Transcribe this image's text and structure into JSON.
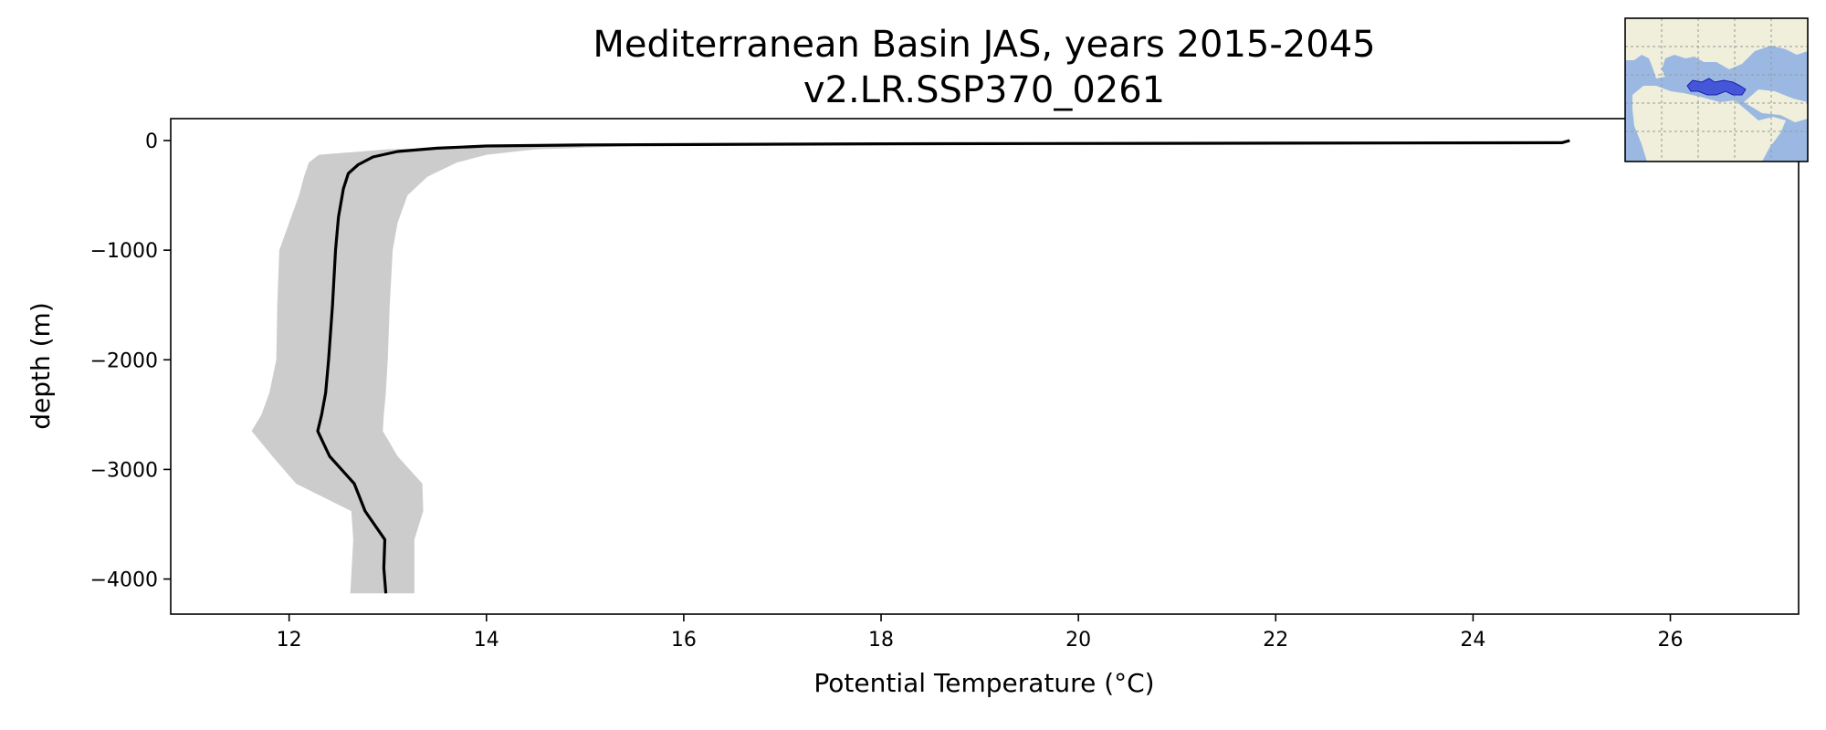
{
  "chart_data": {
    "type": "line",
    "title": "Mediterranean Basin JAS, years 2015-2045",
    "subtitle": "v2.LR.SSP370_0261",
    "xlabel": "Potential Temperature (°C)",
    "ylabel": "depth (m)",
    "xlim": [
      10.8,
      27.3
    ],
    "ylim": [
      -4320,
      200
    ],
    "x_ticks": [
      12,
      14,
      16,
      18,
      20,
      22,
      24,
      26
    ],
    "x_tick_labels": [
      "12",
      "14",
      "16",
      "18",
      "20",
      "22",
      "24",
      "26"
    ],
    "y_ticks": [
      0,
      -1000,
      -2000,
      -3000,
      -4000
    ],
    "y_tick_labels": [
      "0",
      "−1000",
      "−2000",
      "−3000",
      "−4000"
    ],
    "grid": false,
    "legend": "none",
    "series": [
      {
        "role": "mean",
        "color": "#000000",
        "x": [
          24.98,
          24.9,
          18.0,
          15.0,
          14.0,
          13.5,
          13.1,
          12.85,
          12.7,
          12.6,
          12.55,
          12.5,
          12.47,
          12.44,
          12.4,
          12.37,
          12.33,
          12.29,
          12.41,
          12.66,
          12.77,
          12.97,
          12.96,
          12.98
        ],
        "y": [
          0,
          -20,
          -30,
          -40,
          -50,
          -70,
          -100,
          -150,
          -220,
          -300,
          -440,
          -700,
          -1000,
          -1500,
          -2000,
          -2300,
          -2500,
          -2650,
          -2880,
          -3130,
          -3380,
          -3640,
          -3900,
          -4130
        ]
      },
      {
        "role": "range",
        "color": "#cccccc",
        "x_min": [
          25.5,
          18.0,
          15.0,
          13.0,
          12.3,
          12.2,
          12.15,
          12.1,
          12.0,
          11.9,
          11.88,
          11.87,
          11.8,
          11.72,
          11.62,
          11.83,
          12.07,
          12.63,
          12.65,
          12.62
        ],
        "x_max": [
          25.5,
          18.0,
          15.5,
          14.5,
          14.0,
          13.7,
          13.4,
          13.2,
          13.1,
          13.05,
          13.02,
          13.0,
          12.98,
          12.96,
          12.95,
          13.1,
          13.35,
          13.36,
          13.27,
          13.27
        ],
        "y": [
          0,
          -30,
          -50,
          -80,
          -130,
          -200,
          -330,
          -500,
          -750,
          -1000,
          -1500,
          -2000,
          -2300,
          -2500,
          -2650,
          -2880,
          -3130,
          -3380,
          -3640,
          -4130
        ]
      }
    ]
  },
  "inset_map": {
    "region": "Mediterranean Basin",
    "ocean_color": "#9bb8e2",
    "land_color": "#efefdc",
    "highlight_color": "#2a36d6"
  }
}
